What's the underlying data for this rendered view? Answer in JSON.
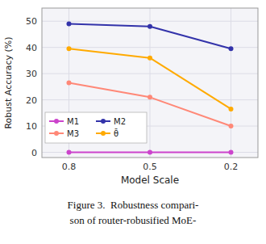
{
  "chart_data": {
    "type": "line",
    "x": [
      0.8,
      0.5,
      0.2
    ],
    "series": [
      {
        "name": "M1",
        "color": "#cc44cc",
        "values": [
          0.0,
          0.0,
          0.0
        ]
      },
      {
        "name": "M2",
        "color": "#3333aa",
        "values": [
          49.0,
          48.0,
          39.5
        ]
      },
      {
        "name": "M3",
        "color": "#ff8877",
        "values": [
          26.5,
          21.0,
          10.0
        ]
      },
      {
        "name": "θ̄",
        "color": "#ffaa00",
        "values": [
          39.5,
          36.0,
          16.5
        ]
      }
    ],
    "x_label": "Model Scale",
    "y_label": "Robust Accuracy (%)",
    "xlim": [
      0.9,
      0.1
    ],
    "ylim": [
      -2,
      55
    ],
    "xticks": [
      0.8,
      0.5,
      0.2
    ],
    "yticks": [
      0,
      10,
      20,
      30,
      40,
      50
    ],
    "grid": true,
    "legend": "lower left",
    "marker": "circle",
    "annotations": [
      "Figure 3.  Robustness compari-",
      "son of router-robusified MoE-"
    ]
  }
}
